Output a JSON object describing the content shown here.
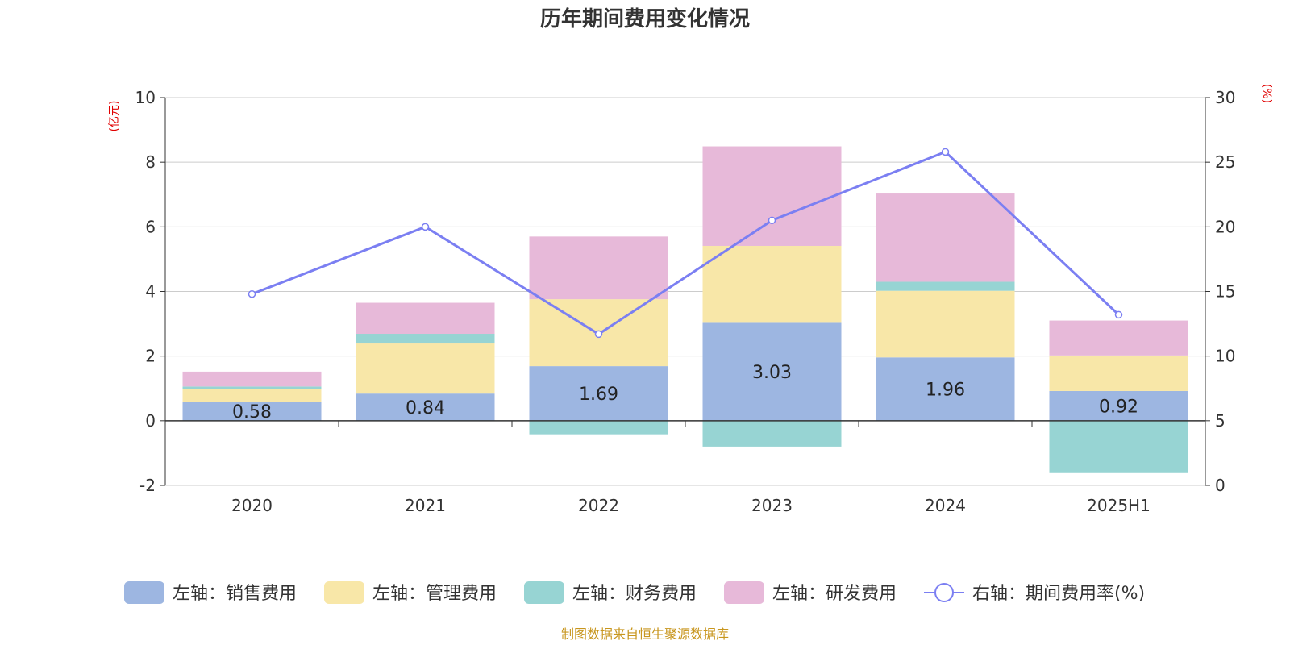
{
  "chart_data": {
    "type": "bar",
    "title": "历年期间费用变化情况",
    "categories": [
      "2020",
      "2021",
      "2022",
      "2023",
      "2024",
      "2025H1"
    ],
    "series": [
      {
        "name": "左轴：销售费用",
        "axis": "left",
        "kind": "bar",
        "color": "#9db6e1",
        "values": [
          0.58,
          0.84,
          1.69,
          3.03,
          1.96,
          0.92
        ],
        "show_labels": true
      },
      {
        "name": "左轴：管理费用",
        "axis": "left",
        "kind": "bar",
        "color": "#f8e7a8",
        "values": [
          0.4,
          1.55,
          2.07,
          2.38,
          2.06,
          1.1
        ],
        "show_labels": false
      },
      {
        "name": "左轴：财务费用",
        "axis": "left",
        "kind": "bar",
        "color": "#97d4d3",
        "values": [
          0.08,
          0.3,
          -0.42,
          -0.8,
          0.28,
          -1.62
        ],
        "show_labels": false
      },
      {
        "name": "左轴：研发费用",
        "axis": "left",
        "kind": "bar",
        "color": "#e7b9d9",
        "values": [
          0.46,
          0.96,
          1.94,
          3.08,
          2.73,
          1.08
        ],
        "show_labels": false
      },
      {
        "name": "右轴：期间费用率(%)",
        "axis": "right",
        "kind": "line",
        "color": "#7b7ff2",
        "values": [
          14.8,
          20.0,
          11.7,
          20.5,
          25.8,
          13.2
        ]
      }
    ],
    "left_axis": {
      "unit": "(亿元)",
      "min": -2,
      "max": 10,
      "ticks": [
        -2,
        0,
        2,
        4,
        6,
        8,
        10
      ]
    },
    "right_axis": {
      "unit": "(%)",
      "min": 0,
      "max": 30,
      "ticks": [
        0,
        5,
        10,
        15,
        20,
        25,
        30
      ]
    },
    "grid": true,
    "legend_position": "bottom",
    "source": "制图数据来自恒生聚源数据库"
  }
}
